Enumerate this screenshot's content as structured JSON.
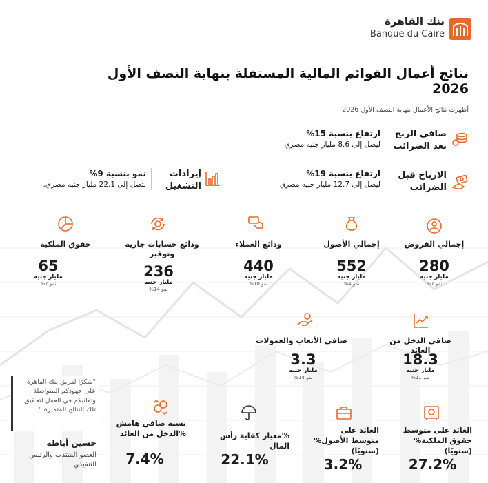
{
  "header": {
    "logo_ar": "بنك القاهرة",
    "logo_fr": "Banque du Caire",
    "title": "نتائج أعمال القوائم المالية المستقلة بنهاية النصف الأول 2026",
    "subtitle": "أظهرت نتائج الأعمال بنهاية النصف الأول 2026"
  },
  "highlights": [
    {
      "label": "صافي الربح بعد الضرائب",
      "line1": "ارتفاع بنسبة 15%",
      "line2": "ليصل إلى 8.6 مليار جنيه مصري",
      "icon": "coins-icon"
    },
    {
      "label": "الارباح قبل الضرائب",
      "line1": "ارتفاع بنسبة 19%",
      "line2": "ليصل إلى 12.7 مليار جنيه مصري",
      "icon": "money-hand-icon"
    },
    {
      "label": "إيرادات التشغيل",
      "line1": "نمو بنسبة 9%",
      "line2": "لتصل إلى 22.1 مليار جنيه مصري.",
      "icon": "bar-chart-icon"
    }
  ],
  "metrics_row1": [
    {
      "label": "إجمالي القروض",
      "value": "280",
      "unit": "مليار جنيه",
      "growth": "نمو 7%",
      "icon": "loans-icon"
    },
    {
      "label": "إجمالي الأصول",
      "value": "552",
      "unit": "مليار جنيه",
      "growth": "نمو 4%",
      "icon": "money-bag-icon"
    },
    {
      "label": "ودائع العملاء",
      "value": "440",
      "unit": "مليار جنيه",
      "growth": "نمو 10%",
      "icon": "deposit-hand-icon"
    },
    {
      "label": "ودائع حسابات جارية وتوفير",
      "value": "236",
      "unit": "مليار جنيه",
      "growth": "نمو 14%",
      "icon": "currency-cycle-icon"
    },
    {
      "label": "حقوق الملكية",
      "value": "65",
      "unit": "مليار جنيه",
      "growth": "نمو 7%",
      "icon": "pie-chart-icon"
    }
  ],
  "metrics_row2": [
    {
      "label": "صافى الدخل من العائد",
      "value": "18.3",
      "unit": "مليار جنيه",
      "growth": "نمو 11%",
      "icon": "growth-chart-icon"
    },
    {
      "label": "صافي الأتعاب والعمولات",
      "value": "3.3",
      "unit": "مليار جنيه",
      "growth": "نمو 14%",
      "icon": "fee-hand-icon"
    }
  ],
  "ratios": [
    {
      "label": "العائد على متوسط حقوق الملكية% (سنويًا)",
      "value": "27.2%",
      "icon": "safe-icon"
    },
    {
      "label": "العائد على متوسط الأصول% (سنويًا)",
      "value": "3.2%",
      "icon": "briefcase-icon"
    },
    {
      "label": "%معيار كفاية رأس المال",
      "value": "22.1%",
      "icon": "umbrella-icon"
    },
    {
      "label": "نسبة صافي هامش %الدخل من العائد",
      "value": "7.4%",
      "icon": "coin-swap-icon"
    }
  ],
  "quote": {
    "text": "\"شكرًا لفريق بنك القاهرة على جهودكم المتواصلة وتفانيكم في العمل لتحقيق تلك النتائج المتميزة.\"",
    "name": "حسين أباظة",
    "role": "العضو المنتدب والرئيس التنفيذي"
  },
  "colors": {
    "accent": "#e8692c",
    "text": "#1a1a1a"
  }
}
